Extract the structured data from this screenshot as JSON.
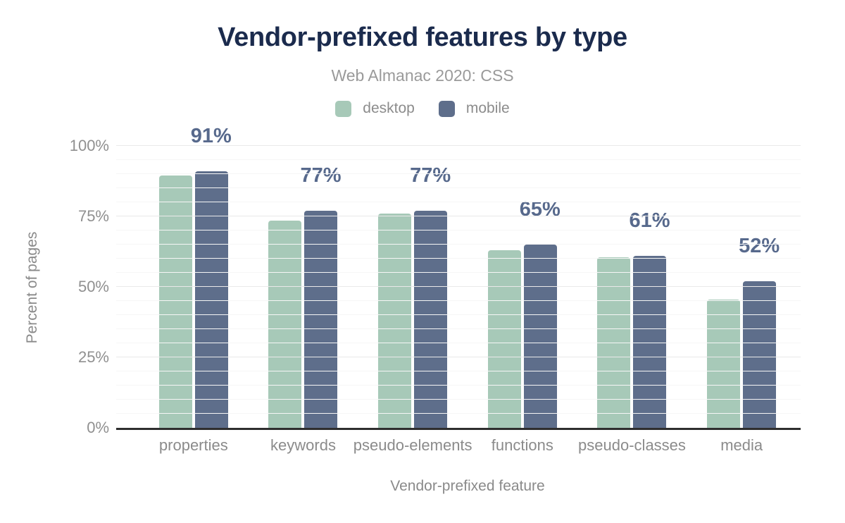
{
  "header": {
    "title": "Vendor-prefixed features by type",
    "subtitle": "Web Almanac 2020: CSS"
  },
  "legend": [
    {
      "label": "desktop",
      "color": "#a7c9b8"
    },
    {
      "label": "mobile",
      "color": "#5e6e8b"
    }
  ],
  "chart_data": {
    "type": "bar",
    "categories": [
      "properties",
      "keywords",
      "pseudo-elements",
      "functions",
      "pseudo-classes",
      "media"
    ],
    "series": [
      {
        "name": "desktop",
        "color": "#a7c9b8",
        "values": [
          89.5,
          73.5,
          76,
          63,
          60.5,
          45.5
        ]
      },
      {
        "name": "mobile",
        "color": "#5e6e8b",
        "values": [
          91,
          77,
          77,
          65,
          61,
          52
        ]
      }
    ],
    "data_labels": [
      "91%",
      "77%",
      "77%",
      "65%",
      "61%",
      "52%"
    ],
    "data_label_series": "mobile",
    "title": "Vendor-prefixed features by type",
    "subtitle": "Web Almanac 2020: CSS",
    "xlabel": "Vendor-prefixed feature",
    "ylabel": "Percent of pages",
    "ylim": [
      0,
      100
    ],
    "y_ticks": [
      {
        "label": "0%",
        "value": 0
      },
      {
        "label": "25%",
        "value": 25
      },
      {
        "label": "50%",
        "value": 50
      },
      {
        "label": "75%",
        "value": 75
      },
      {
        "label": "100%",
        "value": 100
      }
    ],
    "grid": {
      "on": true,
      "step_percent": 5,
      "major_step_percent": 25
    },
    "legend_position": "top"
  },
  "colors": {
    "title": "#1b2b4d",
    "subtitle": "#9a9a9a",
    "axis_text": "#8b8b8b",
    "data_label": "#57698c",
    "baseline": "#2e2e2e",
    "gridline_minor": "#f6f6f6",
    "gridline_major": "#e9e9e9",
    "desktop": "#a7c9b8",
    "mobile": "#5e6e8b"
  }
}
